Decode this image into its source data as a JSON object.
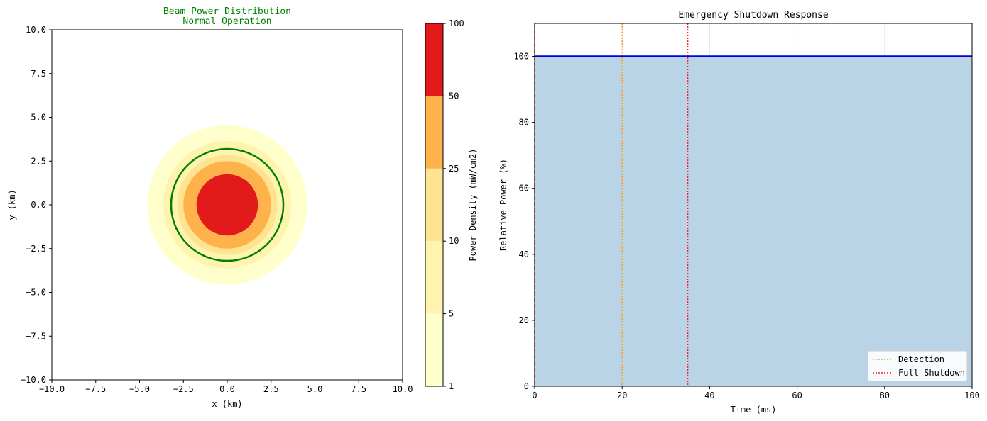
{
  "colors": {
    "band_1_5": "#ffffcc",
    "band_5_10": "#fff3b0",
    "band_10_25": "#fee391",
    "band_25_50": "#feb24c",
    "band_50_100": "#e31a1c",
    "circle": "#008000",
    "title_left": "#008000",
    "power_line": "#0000dd",
    "fill": "#b9d4e7",
    "detection": "#ff9f1c",
    "shutdown": "#ff2020"
  },
  "chart_data": [
    {
      "type": "heatmap",
      "title": "Beam Power Distribution",
      "subtitle": "Normal Operation",
      "xlabel": "x (km)",
      "ylabel": "y (km)",
      "xlim": [
        -10,
        10
      ],
      "ylim": [
        -10,
        10
      ],
      "xticks": [
        "−10.0",
        "−7.5",
        "−5.0",
        "−2.5",
        "0.0",
        "2.5",
        "5.0",
        "7.5",
        "10.0"
      ],
      "yticks": [
        "10.0",
        "7.5",
        "5.0",
        "2.5",
        "0.0",
        "−2.5",
        "−5.0",
        "−7.5",
        "−10.0"
      ],
      "tick_values": [
        -10,
        -7.5,
        -5,
        -2.5,
        0,
        2.5,
        5,
        7.5,
        10
      ],
      "contour_levels_mw_cm2": [
        1,
        5,
        10,
        25,
        50,
        100
      ],
      "contour_radii_km": [
        {
          "level": 1,
          "radius": 4.55
        },
        {
          "level": 5,
          "radius": 3.65
        },
        {
          "level": 10,
          "radius": 2.85
        },
        {
          "level": 25,
          "radius": 2.5
        },
        {
          "level": 50,
          "radius": 1.75
        }
      ],
      "boundary_circle_radius_km": 3.2,
      "colorbar": {
        "label": "Power Density (mW/cm2)",
        "ticks": [
          "1",
          "5",
          "10",
          "25",
          "50",
          "100"
        ]
      }
    },
    {
      "type": "line",
      "title": "Emergency Shutdown Response",
      "xlabel": "Time (ms)",
      "ylabel": "Relative Power (%)",
      "xlim": [
        0,
        100
      ],
      "ylim": [
        0,
        110
      ],
      "xticks": [
        0,
        20,
        40,
        60,
        80,
        100
      ],
      "yticks": [
        0,
        20,
        40,
        60,
        80,
        100
      ],
      "grid": true,
      "series": [
        {
          "name": "Relative Power",
          "x": [
            0,
            100
          ],
          "y": [
            100,
            100
          ]
        }
      ],
      "vlines": [
        {
          "name": "Detection",
          "x": 20,
          "style": "dotted"
        },
        {
          "name": "Full Shutdown",
          "x": 35,
          "style": "dotted"
        },
        {
          "name": "",
          "x": 0,
          "style": "dashed"
        }
      ],
      "legend": {
        "position": "bottom-right",
        "entries": [
          "Detection",
          "Full Shutdown"
        ]
      }
    }
  ]
}
